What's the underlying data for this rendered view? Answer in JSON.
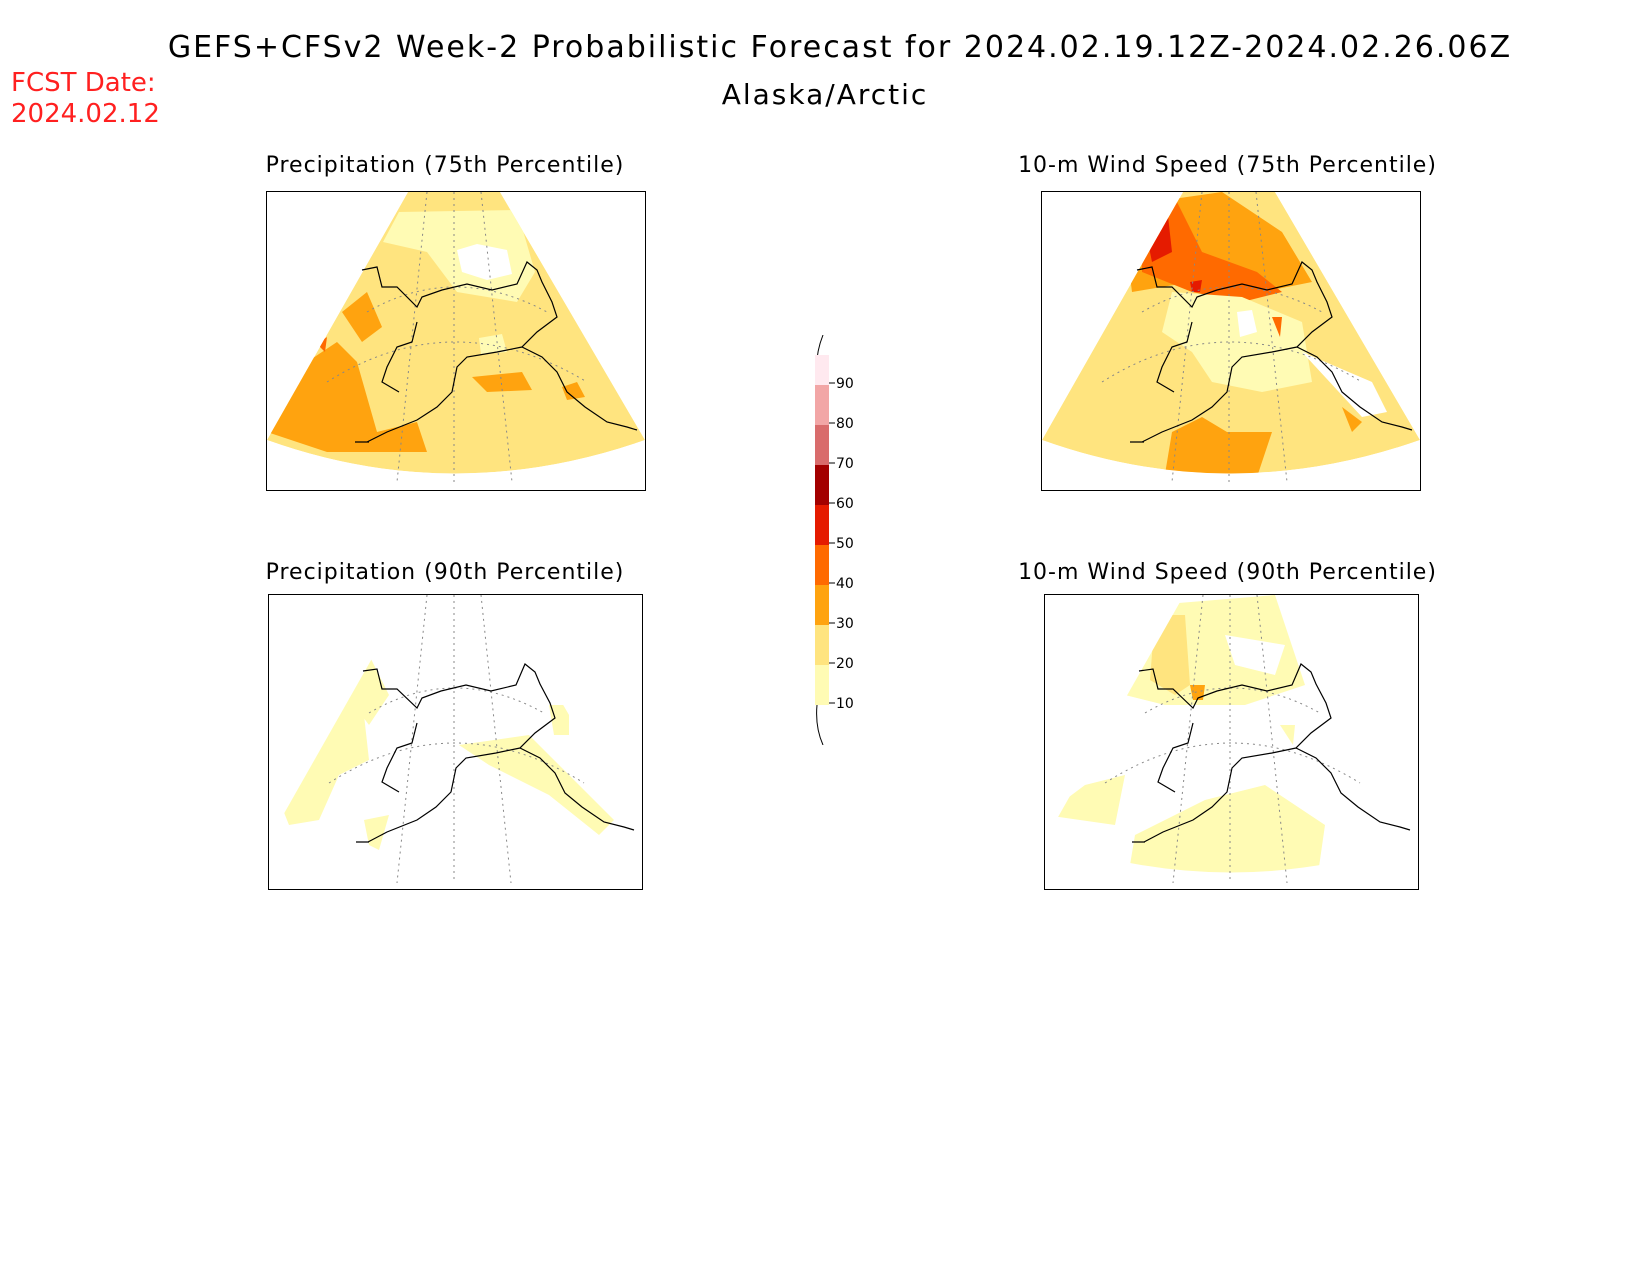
{
  "header": {
    "title": "GEFS+CFSv2 Week-2 Probabilistic Forecast for 2024.02.19.12Z-2024.02.26.06Z",
    "region": "Alaska/Arctic",
    "fcst_date_label": "FCST Date:",
    "fcst_date_value": "2024.02.12"
  },
  "panels": [
    {
      "id": "precip75",
      "title": "Precipitation (75th Percentile)",
      "base_level": 20
    },
    {
      "id": "wind75",
      "title": "10-m Wind Speed (75th Percentile)",
      "base_level": 20
    },
    {
      "id": "precip90",
      "title": "Precipitation (90th Percentile)",
      "base_level": 0
    },
    {
      "id": "wind90",
      "title": "10-m Wind Speed (90th Percentile)",
      "base_level": 0
    }
  ],
  "colorbar": {
    "levels": [
      10,
      20,
      30,
      40,
      50,
      60,
      70,
      80,
      90
    ],
    "colors": [
      "#fffbb4",
      "#ffe47f",
      "#ffa30f",
      "#ff6a00",
      "#e51b00",
      "#a30000",
      "#d96c6c",
      "#f2a6a6",
      "#ffe9ef"
    ]
  },
  "colors": {
    "fcst_date": "#ff2020",
    "level_10_20": "#fffbb4",
    "level_20_30": "#ffe47f",
    "level_30_40": "#ffa30f",
    "level_40_50": "#ff6a00",
    "level_50_60": "#e51b00",
    "coastline": "#000000"
  }
}
